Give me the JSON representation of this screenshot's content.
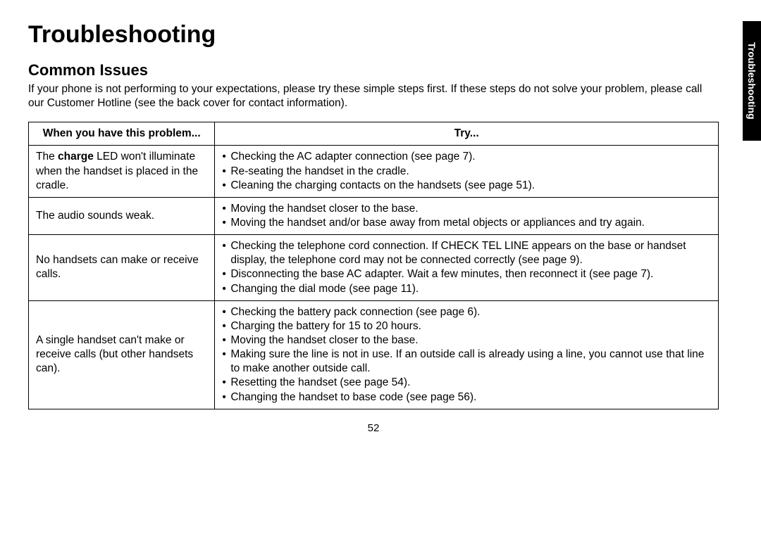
{
  "page": {
    "title": "Troubleshooting",
    "section_title": "Common Issues",
    "intro": "If your phone is not performing to your expectations, please try these simple steps first. If these steps do not solve your problem, please call our Customer Hotline (see the back cover for contact information).",
    "side_tab": "Troubleshooting",
    "page_number": "52"
  },
  "table": {
    "header_problem": "When you have this problem...",
    "header_try": "Try...",
    "rows": [
      {
        "problem_prefix": "The ",
        "problem_bold": "charge",
        "problem_suffix": " LED won't illuminate when the handset is placed in the cradle.",
        "tries": [
          "Checking the AC adapter connection (see page 7).",
          "Re-seating the handset in the cradle.",
          "Cleaning the charging contacts on the handsets (see page 51)."
        ]
      },
      {
        "problem": "The audio sounds weak.",
        "tries": [
          "Moving the handset closer to the base.",
          "Moving the handset and/or base away from metal objects or appliances and try again."
        ]
      },
      {
        "problem": "No handsets can make or receive calls.",
        "tries": [
          "Checking the telephone cord connection. If CHECK TEL LINE appears on the base or handset display, the telephone cord may not be connected correctly (see page 9).",
          "Disconnecting the base AC adapter. Wait a few minutes, then reconnect it (see page 7).",
          "Changing the dial mode (see page 11)."
        ]
      },
      {
        "problem": "A single handset can't make or receive calls (but other handsets can).",
        "tries": [
          "Checking the battery pack connection (see page 6).",
          "Charging the battery for 15 to 20 hours.",
          "Moving the handset closer to the base.",
          "Making sure the line is not in use. If an outside call is already using a line, you cannot use that line to make another outside call.",
          "Resetting the handset (see page 54).",
          "Changing the handset to base code (see page 56)."
        ]
      }
    ]
  }
}
